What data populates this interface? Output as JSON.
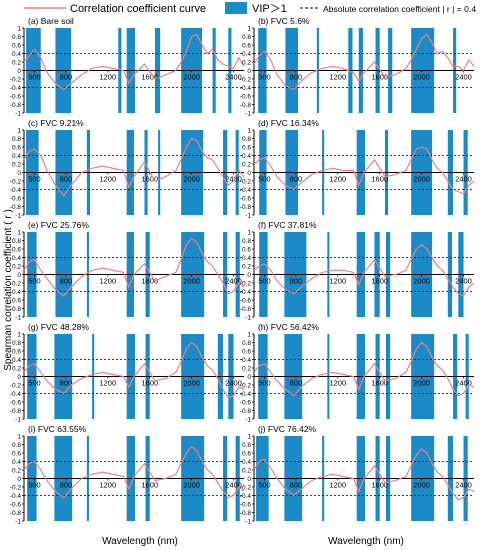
{
  "legend": {
    "curve_label": "Correlation coefficient curve",
    "vip_label": "VIP＞1",
    "threshold_label": "Absolute correlation coefficient | r | = 0.4"
  },
  "colors": {
    "curve": "#f08080",
    "vip": "#1a8bc6",
    "threshold": "#000000",
    "axis": "#000000"
  },
  "ylabel": "Spearman correlation coefficient ( r )",
  "xlabel": "Wavelength (nm)",
  "chart_data": {
    "type": "line",
    "xlim": [
      400,
      2500
    ],
    "ylim": [
      -1,
      1
    ],
    "threshold": 0.4,
    "x_ticks": [
      500,
      800,
      1200,
      1600,
      2000,
      2400
    ],
    "y_ticks": [
      "1",
      "0.8",
      "0.6",
      "0.4",
      "0.2",
      "0",
      "-0.2",
      "-0.4",
      "-0.6",
      "-0.8",
      "-1"
    ],
    "panels": [
      {
        "title": "(a)  Bare soil",
        "curve": {
          "x": [
            400,
            450,
            500,
            560,
            620,
            700,
            780,
            850,
            950,
            1050,
            1150,
            1250,
            1350,
            1400,
            1450,
            1550,
            1650,
            1750,
            1850,
            1900,
            1950,
            2000,
            2050,
            2100,
            2150,
            2200,
            2250,
            2300,
            2350,
            2400,
            2450,
            2500
          ],
          "y": [
            0.2,
            0.35,
            0.5,
            0.3,
            -0.05,
            -0.3,
            -0.45,
            -0.3,
            -0.1,
            0.05,
            0.1,
            0.05,
            0.0,
            -0.3,
            -0.1,
            0.15,
            -0.2,
            -0.1,
            0.0,
            0.2,
            0.45,
            0.8,
            0.85,
            0.6,
            0.4,
            0.5,
            0.25,
            0.15,
            0.1,
            0.05,
            0.3,
            0.1
          ]
        },
        "vip_bands": [
          [
            420,
            560
          ],
          [
            700,
            850
          ],
          [
            1300,
            1330
          ],
          [
            1380,
            1460
          ],
          [
            1650,
            1700
          ],
          [
            1900,
            2100
          ],
          [
            2200,
            2230
          ],
          [
            2350,
            2380
          ]
        ]
      },
      {
        "title": "(b)  FVC 5.6%",
        "curve": {
          "x": [
            400,
            450,
            500,
            560,
            620,
            700,
            780,
            850,
            950,
            1050,
            1150,
            1250,
            1350,
            1400,
            1450,
            1550,
            1650,
            1750,
            1850,
            1900,
            1950,
            2000,
            2050,
            2100,
            2150,
            2200,
            2250,
            2300,
            2350,
            2400,
            2450,
            2500
          ],
          "y": [
            0.15,
            0.35,
            0.45,
            0.25,
            -0.1,
            -0.35,
            -0.45,
            -0.25,
            -0.05,
            0.05,
            0.1,
            0.05,
            -0.05,
            -0.25,
            -0.05,
            0.2,
            -0.15,
            -0.1,
            0.05,
            0.25,
            0.5,
            0.75,
            0.85,
            0.65,
            0.4,
            0.45,
            0.3,
            0.1,
            0.1,
            0.0,
            0.25,
            0.1
          ]
        },
        "vip_bands": [
          [
            440,
            520
          ],
          [
            700,
            820
          ],
          [
            1000,
            1020
          ],
          [
            1300,
            1340
          ],
          [
            1400,
            1440
          ],
          [
            1560,
            1600
          ],
          [
            1680,
            1720
          ],
          [
            1900,
            2120
          ],
          [
            2300,
            2330
          ]
        ]
      },
      {
        "title": "(c)  FVC 9.21%",
        "curve": {
          "x": [
            400,
            450,
            500,
            560,
            620,
            700,
            780,
            850,
            950,
            1050,
            1150,
            1250,
            1350,
            1400,
            1450,
            1550,
            1650,
            1750,
            1850,
            1900,
            1950,
            2000,
            2050,
            2100,
            2150,
            2200,
            2250,
            2300,
            2350,
            2400,
            2450,
            2500
          ],
          "y": [
            0.3,
            0.5,
            0.55,
            0.4,
            0.05,
            -0.3,
            -0.55,
            -0.3,
            0.0,
            0.1,
            0.15,
            0.1,
            0.05,
            -0.35,
            -0.1,
            0.25,
            -0.2,
            -0.1,
            0.05,
            0.3,
            0.6,
            0.8,
            0.75,
            0.5,
            0.35,
            0.3,
            0.1,
            -0.1,
            -0.3,
            -0.2,
            0.05,
            -0.1
          ]
        },
        "vip_bands": [
          [
            420,
            540
          ],
          [
            700,
            860
          ],
          [
            1000,
            1030
          ],
          [
            1380,
            1450
          ],
          [
            1550,
            1580
          ],
          [
            1680,
            1700
          ],
          [
            1900,
            2110
          ],
          [
            2300,
            2340
          ],
          [
            2420,
            2450
          ]
        ]
      },
      {
        "title": "(d)  FVC 16.34%",
        "curve": {
          "x": [
            400,
            450,
            500,
            560,
            620,
            700,
            780,
            850,
            950,
            1050,
            1150,
            1250,
            1350,
            1400,
            1450,
            1550,
            1650,
            1750,
            1850,
            1900,
            1950,
            2000,
            2050,
            2100,
            2150,
            2200,
            2250,
            2300,
            2350,
            2400,
            2450,
            2500
          ],
          "y": [
            0.2,
            0.3,
            0.35,
            0.15,
            -0.1,
            -0.3,
            -0.4,
            -0.25,
            -0.05,
            0.05,
            0.1,
            0.05,
            0.05,
            -0.3,
            0.0,
            0.3,
            -0.1,
            -0.05,
            0.05,
            0.3,
            0.55,
            0.6,
            0.55,
            0.3,
            0.1,
            0.0,
            -0.2,
            -0.4,
            -0.45,
            -0.5,
            -0.3,
            -0.2
          ]
        },
        "vip_bands": [
          [
            450,
            520
          ],
          [
            700,
            820
          ],
          [
            1050,
            1070
          ],
          [
            1380,
            1460
          ],
          [
            1650,
            1680
          ],
          [
            1900,
            2100
          ],
          [
            2250,
            2300
          ],
          [
            2400,
            2440
          ]
        ]
      },
      {
        "title": "(e)  FVC 25.76%",
        "curve": {
          "x": [
            400,
            450,
            500,
            560,
            620,
            700,
            780,
            850,
            950,
            1050,
            1150,
            1250,
            1350,
            1400,
            1450,
            1550,
            1650,
            1750,
            1850,
            1900,
            1950,
            2000,
            2050,
            2100,
            2150,
            2200,
            2250,
            2300,
            2350,
            2400,
            2450,
            2500
          ],
          "y": [
            0.1,
            0.3,
            0.35,
            0.1,
            -0.1,
            -0.35,
            -0.5,
            -0.3,
            -0.05,
            0.1,
            0.15,
            0.1,
            0.05,
            -0.3,
            0.0,
            0.25,
            -0.15,
            -0.05,
            0.05,
            0.35,
            0.7,
            0.85,
            0.75,
            0.5,
            0.3,
            0.2,
            0.0,
            -0.2,
            -0.45,
            -0.4,
            -0.2,
            -0.3
          ]
        },
        "vip_bands": [
          [
            430,
            520
          ],
          [
            700,
            860
          ],
          [
            1000,
            1020
          ],
          [
            1380,
            1450
          ],
          [
            1560,
            1600
          ],
          [
            1900,
            2120
          ],
          [
            2300,
            2340
          ],
          [
            2420,
            2460
          ]
        ]
      },
      {
        "title": "(f)  FVC 37.81%",
        "curve": {
          "x": [
            400,
            450,
            500,
            560,
            620,
            700,
            780,
            850,
            950,
            1050,
            1150,
            1250,
            1350,
            1400,
            1450,
            1550,
            1650,
            1750,
            1850,
            1900,
            1950,
            2000,
            2050,
            2100,
            2150,
            2200,
            2250,
            2300,
            2350,
            2400,
            2450,
            2500
          ],
          "y": [
            0.1,
            0.2,
            0.25,
            0.1,
            -0.15,
            -0.35,
            -0.45,
            -0.3,
            -0.1,
            0.05,
            0.1,
            0.1,
            0.05,
            -0.25,
            0.05,
            0.35,
            -0.05,
            0.0,
            0.1,
            0.35,
            0.6,
            0.7,
            0.6,
            0.4,
            0.2,
            0.1,
            -0.1,
            -0.3,
            -0.45,
            -0.5,
            -0.3,
            -0.2
          ]
        },
        "vip_bands": [
          [
            450,
            530
          ],
          [
            690,
            900
          ],
          [
            1100,
            1120
          ],
          [
            1380,
            1460
          ],
          [
            1550,
            1600
          ],
          [
            1660,
            1700
          ],
          [
            1900,
            2100
          ],
          [
            2250,
            2290
          ],
          [
            2350,
            2400
          ]
        ]
      },
      {
        "title": "(g)  FVC 48.28%",
        "curve": {
          "x": [
            400,
            450,
            500,
            560,
            620,
            700,
            780,
            850,
            950,
            1050,
            1150,
            1250,
            1350,
            1400,
            1450,
            1550,
            1650,
            1750,
            1850,
            1900,
            1950,
            2000,
            2050,
            2100,
            2150,
            2200,
            2250,
            2300,
            2350,
            2400,
            2450,
            2500
          ],
          "y": [
            0.1,
            0.25,
            0.3,
            0.1,
            -0.1,
            -0.3,
            -0.4,
            -0.2,
            -0.05,
            0.05,
            0.1,
            0.05,
            0.0,
            -0.25,
            0.0,
            0.3,
            -0.1,
            -0.05,
            0.1,
            0.35,
            0.65,
            0.8,
            0.7,
            0.45,
            0.25,
            0.15,
            -0.05,
            -0.3,
            -0.5,
            -0.45,
            -0.25,
            -0.3
          ]
        },
        "vip_bands": [
          [
            430,
            520
          ],
          [
            690,
            860
          ],
          [
            1050,
            1070
          ],
          [
            1380,
            1460
          ],
          [
            1560,
            1600
          ],
          [
            1900,
            2120
          ],
          [
            2250,
            2300
          ],
          [
            2350,
            2400
          ]
        ]
      },
      {
        "title": "(h)  FVC 56.42%",
        "curve": {
          "x": [
            400,
            450,
            500,
            560,
            620,
            700,
            780,
            850,
            950,
            1050,
            1150,
            1250,
            1350,
            1400,
            1450,
            1550,
            1650,
            1750,
            1850,
            1900,
            1950,
            2000,
            2050,
            2100,
            2150,
            2200,
            2250,
            2300,
            2350,
            2400,
            2450,
            2500
          ],
          "y": [
            0.1,
            0.25,
            0.3,
            0.1,
            -0.1,
            -0.3,
            -0.45,
            -0.25,
            -0.05,
            0.05,
            0.1,
            0.05,
            0.0,
            -0.3,
            0.0,
            0.3,
            -0.1,
            -0.05,
            0.1,
            0.35,
            0.65,
            0.8,
            0.7,
            0.45,
            0.25,
            0.15,
            -0.05,
            -0.3,
            -0.45,
            -0.4,
            -0.2,
            -0.25
          ]
        },
        "vip_bands": [
          [
            440,
            530
          ],
          [
            690,
            860
          ],
          [
            1100,
            1120
          ],
          [
            1380,
            1460
          ],
          [
            1560,
            1600
          ],
          [
            1660,
            1700
          ],
          [
            1900,
            2120
          ],
          [
            2300,
            2340
          ],
          [
            2420,
            2450
          ]
        ]
      },
      {
        "title": "(i)  FVC 63.55%",
        "curve": {
          "x": [
            400,
            450,
            500,
            560,
            620,
            700,
            780,
            850,
            950,
            1050,
            1150,
            1250,
            1350,
            1400,
            1450,
            1550,
            1650,
            1750,
            1850,
            1900,
            1950,
            2000,
            2050,
            2100,
            2150,
            2200,
            2250,
            2300,
            2350,
            2400,
            2450,
            2500
          ],
          "y": [
            0.2,
            0.35,
            0.4,
            0.2,
            -0.05,
            -0.3,
            -0.45,
            -0.25,
            0.0,
            0.1,
            0.15,
            0.1,
            0.05,
            -0.25,
            0.05,
            0.35,
            -0.05,
            0.0,
            0.1,
            0.35,
            0.6,
            0.75,
            0.65,
            0.4,
            0.2,
            0.1,
            -0.1,
            -0.3,
            -0.45,
            -0.4,
            -0.2,
            -0.3
          ]
        },
        "vip_bands": [
          [
            430,
            520
          ],
          [
            690,
            860
          ],
          [
            1000,
            1020
          ],
          [
            1380,
            1460
          ],
          [
            1560,
            1600
          ],
          [
            1900,
            2120
          ],
          [
            2300,
            2340
          ],
          [
            2420,
            2460
          ]
        ]
      },
      {
        "title": "(j)  FVC 76.42%",
        "curve": {
          "x": [
            400,
            450,
            500,
            560,
            620,
            700,
            780,
            850,
            950,
            1050,
            1150,
            1250,
            1350,
            1400,
            1450,
            1550,
            1650,
            1750,
            1850,
            1900,
            1950,
            2000,
            2050,
            2100,
            2150,
            2200,
            2250,
            2300,
            2350,
            2400,
            2450,
            2500
          ],
          "y": [
            0.2,
            0.4,
            0.45,
            0.25,
            0.0,
            -0.25,
            -0.4,
            -0.25,
            -0.05,
            0.05,
            0.1,
            0.05,
            0.0,
            -0.3,
            0.0,
            0.3,
            -0.1,
            -0.05,
            0.05,
            0.3,
            0.55,
            0.7,
            0.6,
            0.35,
            0.15,
            0.05,
            -0.15,
            -0.35,
            -0.5,
            -0.45,
            -0.25,
            -0.3
          ]
        },
        "vip_bands": [
          [
            420,
            540
          ],
          [
            690,
            860
          ],
          [
            1050,
            1070
          ],
          [
            1380,
            1460
          ],
          [
            1560,
            1600
          ],
          [
            1660,
            1700
          ],
          [
            1900,
            2120
          ],
          [
            2250,
            2300
          ],
          [
            2400,
            2440
          ]
        ]
      }
    ]
  }
}
